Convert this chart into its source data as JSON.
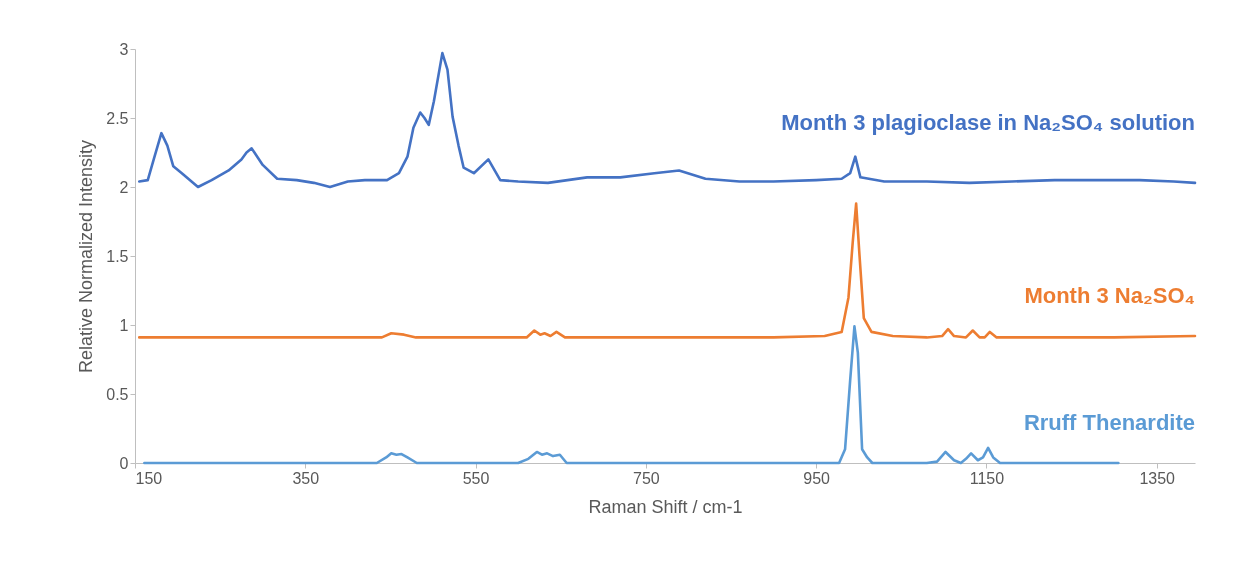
{
  "chart_data": {
    "type": "line",
    "xlabel": "Raman Shift / cm-1",
    "ylabel": "Relative Normalized Intensity",
    "xlim": [
      150,
      1395
    ],
    "xticks": [
      150,
      350,
      550,
      750,
      950,
      1150,
      1350
    ],
    "ylim": [
      0,
      3
    ],
    "yticks": [
      0,
      0.5,
      1,
      1.5,
      2,
      2.5,
      3
    ],
    "grid": false,
    "line_style": "solid",
    "marker": "none",
    "series": [
      {
        "name": "Month 3 plagioclase in Na₂SO₄ solution",
        "color": "#4472c4",
        "x": [
          155,
          165,
          172,
          181,
          188,
          195,
          205,
          224,
          240,
          260,
          275,
          281,
          287,
          300,
          317,
          340,
          360,
          379,
          400,
          420,
          446,
          460,
          470,
          477,
          485,
          490,
          495,
          501,
          511,
          517,
          523,
          530,
          536,
          548,
          565,
          579,
          600,
          635,
          681,
          720,
          760,
          789,
          820,
          860,
          900,
          950,
          980,
          990,
          996,
          1002,
          1030,
          1080,
          1130,
          1180,
          1230,
          1280,
          1330,
          1370,
          1395
        ],
        "values": [
          2.04,
          2.05,
          2.2,
          2.39,
          2.3,
          2.15,
          2.1,
          2.0,
          2.05,
          2.12,
          2.2,
          2.25,
          2.28,
          2.16,
          2.06,
          2.05,
          2.03,
          2.0,
          2.04,
          2.05,
          2.05,
          2.1,
          2.22,
          2.43,
          2.54,
          2.5,
          2.45,
          2.62,
          2.97,
          2.85,
          2.51,
          2.3,
          2.14,
          2.1,
          2.2,
          2.05,
          2.04,
          2.03,
          2.07,
          2.07,
          2.1,
          2.12,
          2.06,
          2.04,
          2.04,
          2.05,
          2.06,
          2.1,
          2.22,
          2.07,
          2.04,
          2.04,
          2.03,
          2.04,
          2.05,
          2.05,
          2.05,
          2.04,
          2.03
        ]
      },
      {
        "name": "Month 3 Na₂SO₄",
        "color": "#ed7d31",
        "x": [
          155,
          200,
          300,
          400,
          440,
          451,
          466,
          480,
          520,
          580,
          610,
          619,
          626,
          631,
          638,
          645,
          655,
          700,
          800,
          900,
          960,
          980,
          988,
          993,
          997,
          1001,
          1006,
          1015,
          1040,
          1080,
          1098,
          1105,
          1112,
          1126,
          1134,
          1142,
          1148,
          1154,
          1162,
          1200,
          1300,
          1395
        ],
        "values": [
          0.91,
          0.91,
          0.91,
          0.91,
          0.91,
          0.94,
          0.93,
          0.91,
          0.91,
          0.91,
          0.91,
          0.96,
          0.93,
          0.94,
          0.92,
          0.95,
          0.91,
          0.91,
          0.91,
          0.91,
          0.92,
          0.95,
          1.2,
          1.6,
          1.88,
          1.5,
          1.05,
          0.95,
          0.92,
          0.91,
          0.92,
          0.97,
          0.92,
          0.91,
          0.96,
          0.91,
          0.91,
          0.95,
          0.91,
          0.91,
          0.91,
          0.92
        ]
      },
      {
        "name": "Rruff Thenardite",
        "color": "#5b9bd5",
        "x": [
          161,
          300,
          420,
          434,
          445,
          451,
          457,
          463,
          470,
          481,
          500,
          600,
          612,
          622,
          628,
          634,
          641,
          649,
          657,
          680,
          900,
          960,
          977,
          984,
          990,
          995,
          999,
          1004,
          1010,
          1016,
          1040,
          1080,
          1092,
          1102,
          1112,
          1120,
          1126,
          1132,
          1140,
          1146,
          1152,
          1158,
          1166,
          1200,
          1305
        ],
        "values": [
          0,
          0,
          0,
          0,
          0.04,
          0.07,
          0.06,
          0.065,
          0.04,
          0,
          0,
          0,
          0.03,
          0.08,
          0.06,
          0.07,
          0.05,
          0.06,
          0,
          0,
          0,
          0,
          0,
          0.1,
          0.6,
          0.99,
          0.8,
          0.1,
          0.04,
          0,
          0,
          0,
          0.01,
          0.08,
          0.02,
          0,
          0.03,
          0.07,
          0.02,
          0.04,
          0.11,
          0.04,
          0,
          0,
          0
        ]
      }
    ]
  }
}
